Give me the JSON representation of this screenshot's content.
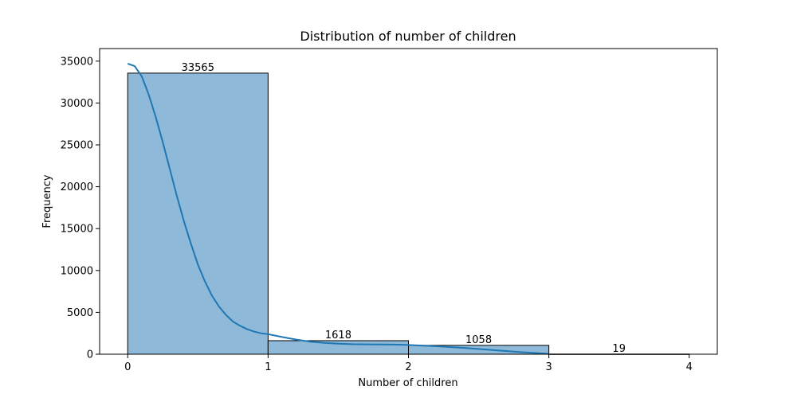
{
  "chart_data": {
    "type": "bar",
    "title": "Distribution of number of children",
    "xlabel": "Number of children",
    "ylabel": "Frequency",
    "xlim": [
      -0.2,
      4.2
    ],
    "ylim": [
      0,
      36500
    ],
    "x_ticks": [
      0,
      1,
      2,
      3,
      4
    ],
    "y_ticks": [
      0,
      5000,
      10000,
      15000,
      20000,
      25000,
      30000,
      35000
    ],
    "bins": [
      {
        "start": 0,
        "end": 1,
        "value": 33565
      },
      {
        "start": 1,
        "end": 2,
        "value": 1618
      },
      {
        "start": 2,
        "end": 3,
        "value": 1058
      },
      {
        "start": 3,
        "end": 4,
        "value": 19
      }
    ],
    "kde": {
      "x": [
        0,
        0.05,
        0.1,
        0.15,
        0.2,
        0.25,
        0.3,
        0.35,
        0.4,
        0.45,
        0.5,
        0.55,
        0.6,
        0.65,
        0.7,
        0.75,
        0.8,
        0.85,
        0.9,
        0.95,
        1.0,
        1.1,
        1.2,
        1.3,
        1.4,
        1.5,
        1.6,
        1.7,
        1.8,
        1.9,
        2.0,
        2.2,
        2.4,
        2.6,
        2.8,
        3.0
      ],
      "y": [
        34700,
        34400,
        33200,
        31000,
        28300,
        25300,
        22100,
        18900,
        15900,
        13200,
        10700,
        8700,
        7000,
        5700,
        4700,
        3900,
        3400,
        3000,
        2700,
        2500,
        2400,
        2050,
        1750,
        1500,
        1350,
        1250,
        1200,
        1180,
        1170,
        1150,
        1100,
        950,
        750,
        500,
        250,
        50
      ]
    },
    "grid": false,
    "legend": "none",
    "colors": {
      "bar_fill": "#8fb9d9",
      "bar_edge": "#000000",
      "kde_line": "#1f77b4"
    }
  }
}
